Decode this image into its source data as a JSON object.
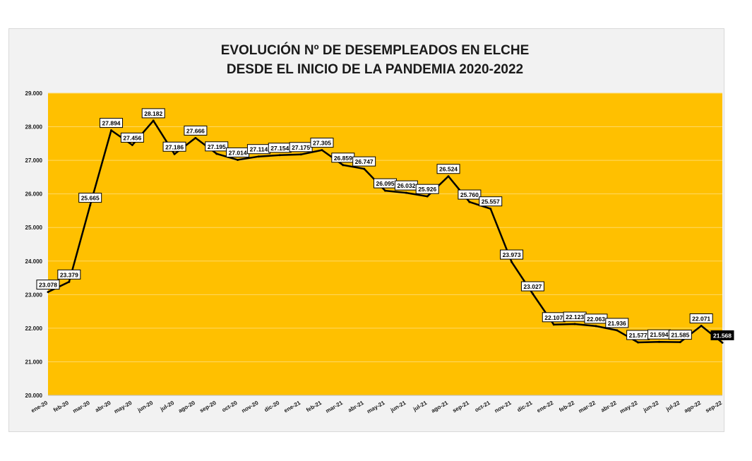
{
  "chart_data": {
    "type": "line",
    "title_line1": "EVOLUCIÓN Nº DE DESEMPLEADOS EN ELCHE",
    "title_line2": "DESDE EL INICIO DE LA PANDEMIA 2020-2022",
    "xlabel": "",
    "ylabel": "",
    "ylim": [
      20000,
      29000
    ],
    "y_ticks": [
      20000,
      21000,
      22000,
      23000,
      24000,
      25000,
      26000,
      27000,
      28000,
      29000
    ],
    "y_tick_labels": [
      "20.000",
      "21.000",
      "22.000",
      "23.000",
      "24.000",
      "25.000",
      "26.000",
      "27.000",
      "28.000",
      "29.000"
    ],
    "grid": true,
    "colors": {
      "plot_bg": "#ffc000",
      "line": "#000000",
      "grid": "#ffd966",
      "label_bg": "#ffffff",
      "last_label_bg": "#000000"
    },
    "categories": [
      "ene-20",
      "feb-20",
      "mar-20",
      "abr-20",
      "may-20",
      "jun-20",
      "jul-20",
      "ago-20",
      "sep-20",
      "oct-20",
      "nov-20",
      "dic-20",
      "ene-21",
      "feb-21",
      "mar-21",
      "abr-21",
      "may-21",
      "jun-21",
      "jul-21",
      "ago-21",
      "sep-21",
      "oct-21",
      "nov-21",
      "dic-21",
      "ene-22",
      "feb-22",
      "mar-22",
      "abr-22",
      "may-22",
      "jun-22",
      "jul-22",
      "ago-22",
      "sep-22"
    ],
    "values": [
      23078,
      23379,
      25665,
      27894,
      27456,
      28182,
      27186,
      27666,
      27195,
      27014,
      27114,
      27154,
      27175,
      27305,
      26859,
      26747,
      26095,
      26032,
      25926,
      26524,
      25760,
      25557,
      23973,
      23027,
      22107,
      22123,
      22063,
      21936,
      21577,
      21594,
      21585,
      22071,
      21568
    ],
    "value_labels": [
      "23.078",
      "23.379",
      "25.665",
      "27.894",
      "27.456",
      "28.182",
      "27.186",
      "27.666",
      "27.195",
      "27.014",
      "27.114",
      "27.154",
      "27.175",
      "27.305",
      "26.859",
      "26.747",
      "26.095",
      "26.032",
      "25.926",
      "26.524",
      "25.760",
      "25.557",
      "23.973",
      "23.027",
      "22.107",
      "22.123",
      "22.063",
      "21.936",
      "21.577",
      "21.594",
      "21.585",
      "22.071",
      "21.568"
    ]
  }
}
